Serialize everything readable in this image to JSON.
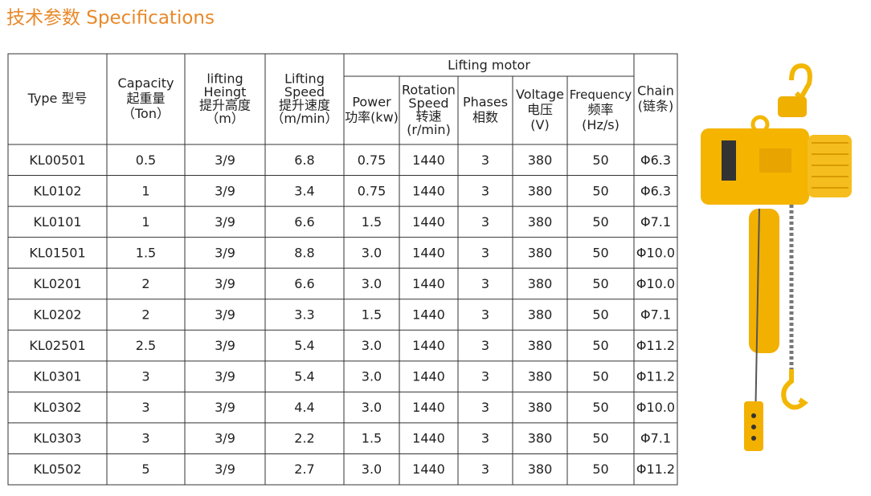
{
  "title": "技术参数 Specifications",
  "table": {
    "group_header": "Lifting motor",
    "headers": [
      [
        "Type 型号"
      ],
      [
        "Capacity",
        "起重量",
        "（Ton）"
      ],
      [
        "lifting",
        "Heingt",
        "提升高度",
        "（m）"
      ],
      [
        "Lifting",
        "Speed",
        "提升速度",
        "（m/min）"
      ],
      [
        "Power",
        "功率(kw)"
      ],
      [
        "Rotation",
        "Speed",
        "转速",
        "(r/min)"
      ],
      [
        "Phases",
        "相数"
      ],
      [
        "Voltage",
        "电压",
        "(V)"
      ],
      [
        "Frequency",
        "频率",
        "(Hz/s)"
      ],
      [
        "Chain",
        "(链条)"
      ]
    ],
    "rows": [
      [
        "KL00501",
        "0.5",
        "3/9",
        "6.8",
        "0.75",
        "1440",
        "3",
        "380",
        "50",
        "Φ6.3"
      ],
      [
        "KL0102",
        "1",
        "3/9",
        "3.4",
        "0.75",
        "1440",
        "3",
        "380",
        "50",
        "Φ6.3"
      ],
      [
        "KL0101",
        "1",
        "3/9",
        "6.6",
        "1.5",
        "1440",
        "3",
        "380",
        "50",
        "Φ7.1"
      ],
      [
        "KL01501",
        "1.5",
        "3/9",
        "8.8",
        "3.0",
        "1440",
        "3",
        "380",
        "50",
        "Φ10.0"
      ],
      [
        "KL0201",
        "2",
        "3/9",
        "6.6",
        "3.0",
        "1440",
        "3",
        "380",
        "50",
        "Φ10.0"
      ],
      [
        "KL0202",
        "2",
        "3/9",
        "3.3",
        "1.5",
        "1440",
        "3",
        "380",
        "50",
        "Φ7.1"
      ],
      [
        "KL02501",
        "2.5",
        "3/9",
        "5.4",
        "3.0",
        "1440",
        "3",
        "380",
        "50",
        "Φ11.2"
      ],
      [
        "KL0301",
        "3",
        "3/9",
        "5.4",
        "3.0",
        "1440",
        "3",
        "380",
        "50",
        "Φ11.2"
      ],
      [
        "KL0302",
        "3",
        "3/9",
        "4.4",
        "3.0",
        "1440",
        "3",
        "380",
        "50",
        "Φ10.0"
      ],
      [
        "KL0303",
        "3",
        "3/9",
        "2.2",
        "1.5",
        "1440",
        "3",
        "380",
        "50",
        "Φ7.1"
      ],
      [
        "KL0502",
        "5",
        "3/9",
        "2.7",
        "3.0",
        "1440",
        "3",
        "380",
        "50",
        "Φ11.2"
      ]
    ]
  }
}
